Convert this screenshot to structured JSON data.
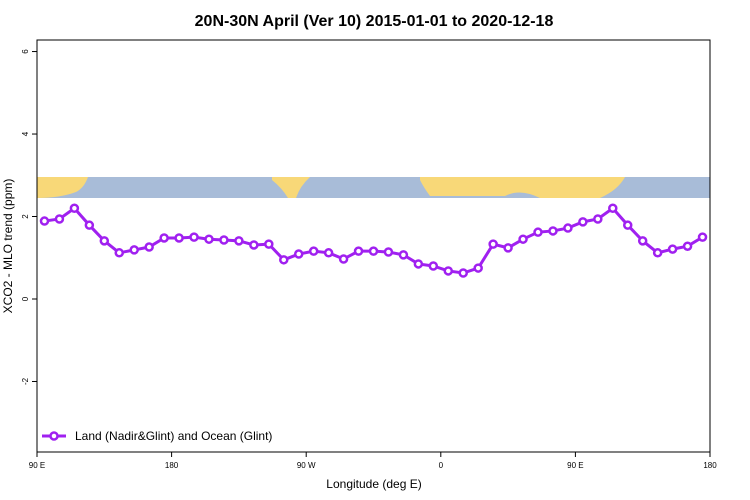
{
  "chart_data": {
    "type": "line",
    "title": "20N-30N April (Ver 10)   2015-01-01 to 2020-12-18",
    "x_label": "Longitude (deg E)",
    "y_label": "XCO2 - MLO trend (ppm)",
    "x": [
      95,
      105,
      115,
      125,
      135,
      145,
      155,
      165,
      175,
      185,
      195,
      205,
      215,
      225,
      235,
      245,
      255,
      265,
      275,
      285,
      295,
      305,
      315,
      325,
      335,
      345,
      355,
      365,
      375,
      385,
      395,
      405,
      415,
      425,
      435,
      445,
      455,
      465,
      475,
      485,
      495,
      505,
      515,
      525,
      535
    ],
    "series": [
      {
        "name": "Land (Nadir&Glint) and Ocean (Glint)",
        "color": "#a020f0",
        "values": [
          1.89,
          1.94,
          2.2,
          1.79,
          1.41,
          1.12,
          1.19,
          1.26,
          1.48,
          1.48,
          1.5,
          1.45,
          1.43,
          1.41,
          1.31,
          1.33,
          0.95,
          1.09,
          1.16,
          1.12,
          0.97,
          1.16,
          1.16,
          1.14,
          1.07,
          0.85,
          0.8,
          0.68,
          0.63,
          0.75,
          1.33,
          1.24,
          1.45,
          1.62,
          1.65,
          1.72,
          1.87,
          1.94,
          2.2,
          1.79,
          1.41,
          1.12,
          1.21,
          1.28,
          1.5
        ]
      }
    ],
    "xlim": [
      90,
      540
    ],
    "xticks": [
      {
        "value": 90,
        "label": "90 E"
      },
      {
        "value": 180,
        "label": "180"
      },
      {
        "value": 270,
        "label": "90 W"
      },
      {
        "value": 360,
        "label": "0"
      },
      {
        "value": 450,
        "label": "90 E"
      },
      {
        "value": 540,
        "label": "180"
      }
    ],
    "ylim": [
      -3.71,
      6.28
    ],
    "yticks": [
      -2,
      0,
      2,
      4,
      6
    ],
    "legend": "bottom-left"
  }
}
